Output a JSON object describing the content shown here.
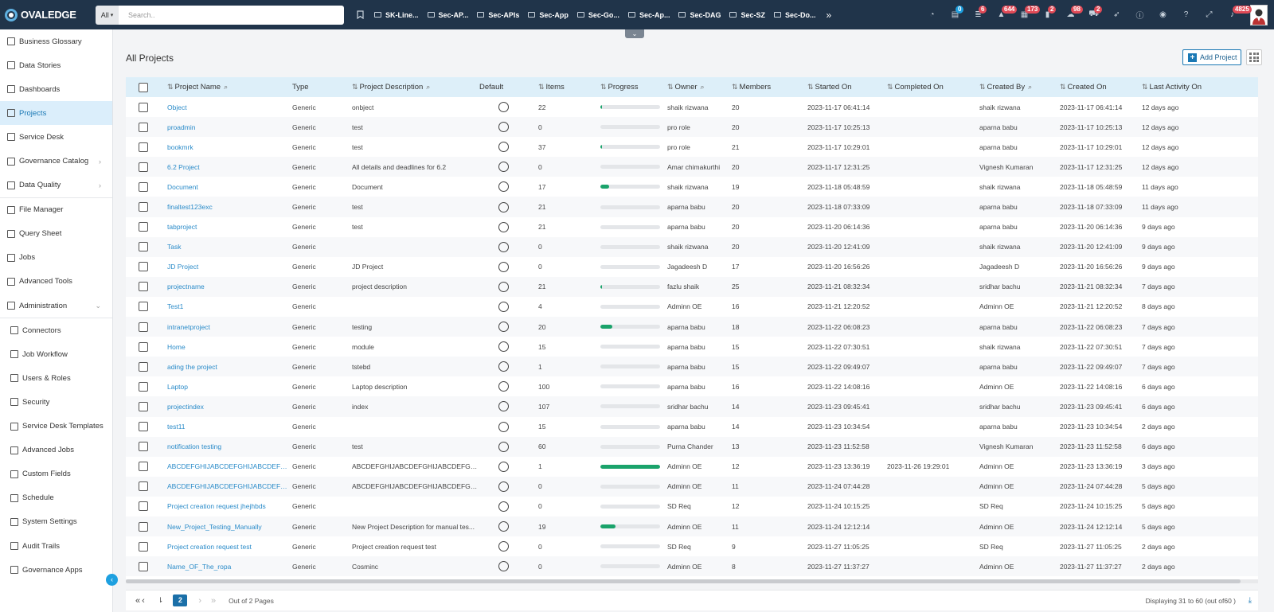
{
  "brand": "OVALEDGE",
  "search": {
    "scope": "All",
    "placeholder": "Search.."
  },
  "bookmarks": [
    "SK-Line...",
    "Sec-AP...",
    "Sec-APIs",
    "Sec-App",
    "Sec-Go...",
    "Sec-Ap...",
    "Sec-DAG",
    "Sec-SZ",
    "Sec-Do..."
  ],
  "top_icons": [
    {
      "icon": "dashboard-gauge-icon",
      "badge": ""
    },
    {
      "icon": "clipboard-icon",
      "badge": "0",
      "badge_color": "blue"
    },
    {
      "icon": "database-icon",
      "badge": "6"
    },
    {
      "icon": "warning-icon",
      "badge": "644"
    },
    {
      "icon": "tasks-icon",
      "badge": "173"
    },
    {
      "icon": "lock-icon",
      "badge": "2"
    },
    {
      "icon": "cloud-icon",
      "badge": "98"
    },
    {
      "icon": "cart-icon",
      "badge": "2"
    },
    {
      "icon": "rocket-icon",
      "badge": ""
    },
    {
      "icon": "info-icon",
      "badge": ""
    },
    {
      "icon": "globe-icon",
      "badge": ""
    },
    {
      "icon": "help-icon",
      "badge": ""
    },
    {
      "icon": "expand-icon",
      "badge": ""
    },
    {
      "icon": "bell-icon",
      "badge": "4825"
    }
  ],
  "sidebar": {
    "items": [
      {
        "label": "Business Glossary",
        "icon": "book-icon"
      },
      {
        "label": "Data Stories",
        "icon": "story-icon"
      },
      {
        "label": "Dashboards",
        "icon": "dashboard-icon"
      },
      {
        "label": "Projects",
        "icon": "projects-icon",
        "active": true
      },
      {
        "label": "Service Desk",
        "icon": "service-desk-icon"
      },
      {
        "label": "Governance Catalog",
        "icon": "catalog-icon",
        "chevron": "›"
      },
      {
        "label": "Data Quality",
        "icon": "data-quality-icon",
        "chevron": "›"
      }
    ],
    "items2": [
      {
        "label": "File Manager",
        "icon": "folder-icon"
      },
      {
        "label": "Query Sheet",
        "icon": "query-icon"
      },
      {
        "label": "Jobs",
        "icon": "jobs-icon"
      },
      {
        "label": "Advanced Tools",
        "icon": "tools-icon"
      },
      {
        "label": "Administration",
        "icon": "admin-icon",
        "chevron": "⌄"
      }
    ],
    "admin_items": [
      {
        "label": "Connectors",
        "icon": "connectors-icon"
      },
      {
        "label": "Job Workflow",
        "icon": "workflow-icon"
      },
      {
        "label": "Users & Roles",
        "icon": "users-icon"
      },
      {
        "label": "Security",
        "icon": "security-lock-icon"
      },
      {
        "label": "Service Desk Templates",
        "icon": "templates-icon"
      },
      {
        "label": "Advanced Jobs",
        "icon": "advanced-jobs-icon"
      },
      {
        "label": "Custom Fields",
        "icon": "custom-fields-icon"
      },
      {
        "label": "Schedule",
        "icon": "schedule-icon"
      },
      {
        "label": "System Settings",
        "icon": "wrench-icon"
      },
      {
        "label": "Audit Trails",
        "icon": "hourglass-icon"
      },
      {
        "label": "Governance Apps",
        "icon": "apps-icon"
      }
    ]
  },
  "main": {
    "title": "All Projects",
    "add_button": "Add Project"
  },
  "table": {
    "columns": [
      {
        "key": "name",
        "label": "Project Name",
        "sort": true,
        "search": true
      },
      {
        "key": "type",
        "label": "Type",
        "sort": false,
        "search": false
      },
      {
        "key": "desc",
        "label": "Project Description",
        "sort": true,
        "search": true
      },
      {
        "key": "default",
        "label": "Default",
        "sort": false,
        "search": false
      },
      {
        "key": "items",
        "label": "Items",
        "sort": true,
        "search": false
      },
      {
        "key": "progress",
        "label": "Progress",
        "sort": true,
        "search": false
      },
      {
        "key": "owner",
        "label": "Owner",
        "sort": true,
        "search": true
      },
      {
        "key": "members",
        "label": "Members",
        "sort": true,
        "search": false
      },
      {
        "key": "started",
        "label": "Started On",
        "sort": true,
        "search": false
      },
      {
        "key": "completed",
        "label": "Completed On",
        "sort": true,
        "search": false
      },
      {
        "key": "created_by",
        "label": "Created By",
        "sort": true,
        "search": true
      },
      {
        "key": "created_on",
        "label": "Created On",
        "sort": true,
        "search": false
      },
      {
        "key": "last_activity",
        "label": "Last Activity On",
        "sort": true,
        "search": false
      }
    ],
    "rows": [
      {
        "name": "Object",
        "type": "Generic",
        "desc": "onbject",
        "items": "22",
        "progress": 3,
        "owner": "shaik rizwana",
        "members": "20",
        "started": "2023-11-17 06:41:14",
        "completed": "",
        "created_by": "shaik rizwana",
        "created_on": "2023-11-17 06:41:14",
        "last_activity": "12 days ago"
      },
      {
        "name": "proadmin",
        "type": "Generic",
        "desc": "test",
        "items": "0",
        "progress": 0,
        "owner": "pro role",
        "members": "20",
        "started": "2023-11-17 10:25:13",
        "completed": "",
        "created_by": "aparna babu",
        "created_on": "2023-11-17 10:25:13",
        "last_activity": "12 days ago"
      },
      {
        "name": "bookmrk",
        "type": "Generic",
        "desc": "test",
        "items": "37",
        "progress": 3,
        "owner": "pro role",
        "members": "21",
        "started": "2023-11-17 10:29:01",
        "completed": "",
        "created_by": "aparna babu",
        "created_on": "2023-11-17 10:29:01",
        "last_activity": "12 days ago"
      },
      {
        "name": "6.2 Project",
        "type": "Generic",
        "desc": "All details and deadlines for 6.2",
        "items": "0",
        "progress": 0,
        "owner": "Amar chimakurthi",
        "members": "20",
        "started": "2023-11-17 12:31:25",
        "completed": "",
        "created_by": "Vignesh Kumaran",
        "created_on": "2023-11-17 12:31:25",
        "last_activity": "12 days ago"
      },
      {
        "name": "Document",
        "type": "Generic",
        "desc": "Document",
        "items": "17",
        "progress": 15,
        "owner": "shaik rizwana",
        "members": "19",
        "started": "2023-11-18 05:48:59",
        "completed": "",
        "created_by": "shaik rizwana",
        "created_on": "2023-11-18 05:48:59",
        "last_activity": "11 days ago"
      },
      {
        "name": "finaltest123exc",
        "type": "Generic",
        "desc": "test",
        "items": "21",
        "progress": 0,
        "owner": "aparna babu",
        "members": "20",
        "started": "2023-11-18 07:33:09",
        "completed": "",
        "created_by": "aparna babu",
        "created_on": "2023-11-18 07:33:09",
        "last_activity": "11 days ago"
      },
      {
        "name": "tabproject",
        "type": "Generic",
        "desc": "test",
        "items": "21",
        "progress": 0,
        "owner": "aparna babu",
        "members": "20",
        "started": "2023-11-20 06:14:36",
        "completed": "",
        "created_by": "aparna babu",
        "created_on": "2023-11-20 06:14:36",
        "last_activity": "9 days ago"
      },
      {
        "name": "Task",
        "type": "Generic",
        "desc": "",
        "items": "0",
        "progress": 0,
        "owner": "shaik rizwana",
        "members": "20",
        "started": "2023-11-20 12:41:09",
        "completed": "",
        "created_by": "shaik rizwana",
        "created_on": "2023-11-20 12:41:09",
        "last_activity": "9 days ago"
      },
      {
        "name": "JD Project",
        "type": "Generic",
        "desc": "JD Project",
        "items": "0",
        "progress": 0,
        "owner": "Jagadeesh D",
        "members": "17",
        "started": "2023-11-20 16:56:26",
        "completed": "",
        "created_by": "Jagadeesh D",
        "created_on": "2023-11-20 16:56:26",
        "last_activity": "9 days ago"
      },
      {
        "name": "projectname",
        "type": "Generic",
        "desc": "project description",
        "items": "21",
        "progress": 3,
        "owner": "fazlu shaik",
        "members": "25",
        "started": "2023-11-21 08:32:34",
        "completed": "",
        "created_by": "sridhar bachu",
        "created_on": "2023-11-21 08:32:34",
        "last_activity": "7 days ago"
      },
      {
        "name": "Test1",
        "type": "Generic",
        "desc": "",
        "items": "4",
        "progress": 0,
        "owner": "Adminn OE",
        "members": "16",
        "started": "2023-11-21 12:20:52",
        "completed": "",
        "created_by": "Adminn OE",
        "created_on": "2023-11-21 12:20:52",
        "last_activity": "8 days ago"
      },
      {
        "name": "intranetproject",
        "type": "Generic",
        "desc": "testing",
        "items": "20",
        "progress": 20,
        "owner": "aparna babu",
        "members": "18",
        "started": "2023-11-22 06:08:23",
        "completed": "",
        "created_by": "aparna babu",
        "created_on": "2023-11-22 06:08:23",
        "last_activity": "7 days ago"
      },
      {
        "name": "Home",
        "type": "Generic",
        "desc": "module",
        "items": "15",
        "progress": 0,
        "owner": "aparna babu",
        "members": "15",
        "started": "2023-11-22 07:30:51",
        "completed": "",
        "created_by": "shaik rizwana",
        "created_on": "2023-11-22 07:30:51",
        "last_activity": "7 days ago"
      },
      {
        "name": "ading the project",
        "type": "Generic",
        "desc": "tstebd",
        "items": "1",
        "progress": 0,
        "owner": "aparna babu",
        "members": "15",
        "started": "2023-11-22 09:49:07",
        "completed": "",
        "created_by": "aparna babu",
        "created_on": "2023-11-22 09:49:07",
        "last_activity": "7 days ago"
      },
      {
        "name": "Laptop",
        "type": "Generic",
        "desc": "Laptop description",
        "items": "100",
        "progress": 0,
        "owner": "aparna babu",
        "members": "16",
        "started": "2023-11-22 14:08:16",
        "completed": "",
        "created_by": "Adminn OE",
        "created_on": "2023-11-22 14:08:16",
        "last_activity": "6 days ago"
      },
      {
        "name": "projectindex",
        "type": "Generic",
        "desc": "index",
        "items": "107",
        "progress": 0,
        "owner": "sridhar bachu",
        "members": "14",
        "started": "2023-11-23 09:45:41",
        "completed": "",
        "created_by": "sridhar bachu",
        "created_on": "2023-11-23 09:45:41",
        "last_activity": "6 days ago"
      },
      {
        "name": "test11",
        "type": "Generic",
        "desc": "",
        "items": "15",
        "progress": 0,
        "owner": "aparna babu",
        "members": "14",
        "started": "2023-11-23 10:34:54",
        "completed": "",
        "created_by": "aparna babu",
        "created_on": "2023-11-23 10:34:54",
        "last_activity": "2 days ago"
      },
      {
        "name": "notification testing",
        "type": "Generic",
        "desc": "test",
        "items": "60",
        "progress": 0,
        "owner": "Purna Chander",
        "members": "13",
        "started": "2023-11-23 11:52:58",
        "completed": "",
        "created_by": "Vignesh Kumaran",
        "created_on": "2023-11-23 11:52:58",
        "last_activity": "6 days ago"
      },
      {
        "name": "ABCDEFGHIJABCDEFGHIJABCDEFGHI...",
        "type": "Generic",
        "desc": "ABCDEFGHIJABCDEFGHIJABCDEFGHI...",
        "items": "1",
        "progress": 100,
        "owner": "Adminn OE",
        "members": "12",
        "started": "2023-11-23 13:36:19",
        "completed": "2023-11-26 19:29:01",
        "created_by": "Adminn OE",
        "created_on": "2023-11-23 13:36:19",
        "last_activity": "3 days ago"
      },
      {
        "name": "ABCDEFGHIJABCDEFGHIJABCDEFGHI...",
        "type": "Generic",
        "desc": "ABCDEFGHIJABCDEFGHIJABCDEFGHI...",
        "items": "0",
        "progress": 0,
        "owner": "Adminn OE",
        "members": "11",
        "started": "2023-11-24 07:44:28",
        "completed": "",
        "created_by": "Adminn OE",
        "created_on": "2023-11-24 07:44:28",
        "last_activity": "5 days ago"
      },
      {
        "name": "Project creation request jhejhbds",
        "type": "Generic",
        "desc": "",
        "items": "0",
        "progress": 0,
        "owner": "SD Req",
        "members": "12",
        "started": "2023-11-24 10:15:25",
        "completed": "",
        "created_by": "SD Req",
        "created_on": "2023-11-24 10:15:25",
        "last_activity": "5 days ago"
      },
      {
        "name": "New_Project_Testing_Manually",
        "type": "Generic",
        "desc": "New Project Description for manual tes...",
        "items": "19",
        "progress": 25,
        "owner": "Adminn OE",
        "members": "11",
        "started": "2023-11-24 12:12:14",
        "completed": "",
        "created_by": "Adminn OE",
        "created_on": "2023-11-24 12:12:14",
        "last_activity": "5 days ago"
      },
      {
        "name": "Project creation request test",
        "type": "Generic",
        "desc": "Project creation request test",
        "items": "0",
        "progress": 0,
        "owner": "SD Req",
        "members": "9",
        "started": "2023-11-27 11:05:25",
        "completed": "",
        "created_by": "SD Req",
        "created_on": "2023-11-27 11:05:25",
        "last_activity": "2 days ago"
      },
      {
        "name": "Name_OF_The_ropa",
        "type": "Generic",
        "desc": "Cosminc",
        "items": "0",
        "progress": 0,
        "owner": "Adminn OE",
        "members": "8",
        "started": "2023-11-27 11:37:27",
        "completed": "",
        "created_by": "Adminn OE",
        "created_on": "2023-11-27 11:37:27",
        "last_activity": "2 days ago"
      }
    ]
  },
  "pager": {
    "current_page": "2",
    "out_of": "Out of 2 Pages",
    "display": "Displaying 31 to 60  (out of60 )"
  }
}
